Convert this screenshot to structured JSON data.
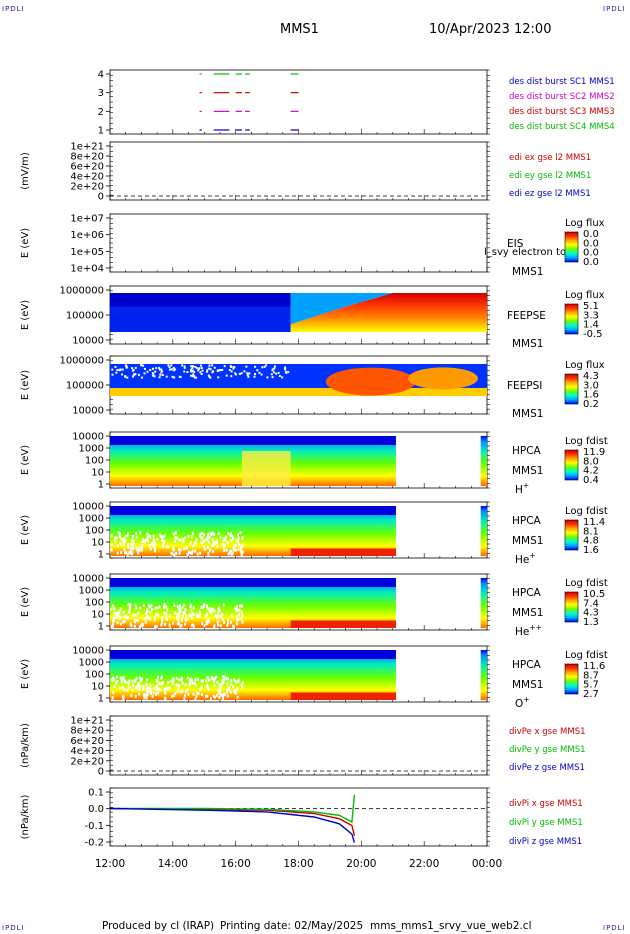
{
  "header": {
    "corner_label": "IPDLI",
    "spacecraft": "MMS1",
    "datetime": "10/Apr/2023 12:00"
  },
  "footer": {
    "produced_by": "Produced by cl (IRAP)",
    "printing_date": "Printing date: 02/May/2025",
    "script_name": "mms_mms1_srvy_vue_web2.cl"
  },
  "colors": {
    "mms1": "#0000cc",
    "mms2": "#cc00cc",
    "mms3": "#cc0000",
    "mms4": "#00bb00",
    "x_comp": "#cc0000",
    "y_comp": "#00bb00",
    "z_comp": "#0000cc",
    "colorbar": [
      "#0000ff",
      "#00aaff",
      "#00ffcc",
      "#66ff00",
      "#ffff00",
      "#ffaa00",
      "#ff3300",
      "#cc0000"
    ]
  },
  "chart_data": {
    "type": "multi-panel time series",
    "x_ticks": [
      "12:00",
      "14:00",
      "16:00",
      "18:00",
      "20:00",
      "22:00",
      "00:00"
    ],
    "x_range_hours": [
      12,
      24
    ],
    "panels": [
      {
        "id": "burst",
        "type": "timeline",
        "ylabel": "",
        "yticks": [
          "4",
          "3",
          "2",
          "1"
        ],
        "legend": [
          {
            "text": "des dist burst SC1 MMS1",
            "color": "#0000cc"
          },
          {
            "text": "des dist burst SC2 MMS2",
            "color": "#cc00cc"
          },
          {
            "text": "des dist burst SC3 MMS3",
            "color": "#cc0000"
          },
          {
            "text": "des dist burst SC4 MMS4",
            "color": "#00bb00"
          }
        ],
        "intervals_hours": [
          [
            14.85,
            14.92
          ],
          [
            15.3,
            15.8
          ],
          [
            16.0,
            16.2
          ],
          [
            16.3,
            16.45
          ],
          [
            17.75,
            18.0
          ]
        ]
      },
      {
        "id": "efield",
        "type": "line",
        "ylabel": "(mV/m)",
        "yticks": [
          "1e+21",
          "8e+20",
          "6e+20",
          "4e+20",
          "2e+20",
          "0"
        ],
        "legend": [
          {
            "text": "edi ex gse l2 MMS1",
            "color": "#cc0000"
          },
          {
            "text": "edi ey gse l2 MMS1",
            "color": "#00bb00"
          },
          {
            "text": "edi ez gse l2 MMS1",
            "color": "#0000cc"
          }
        ]
      },
      {
        "id": "eis",
        "type": "spectrogram",
        "ylabel": "E (eV)",
        "yticks": [
          "1e+07",
          "1e+06",
          "1e+05",
          "1e+04"
        ],
        "labels": [
          "EIS",
          "MMS1"
        ],
        "overlay_text": "l_svy electron to",
        "colorbar_title": "Log flux",
        "colorbar_ticks": [
          "0.0",
          "0.0",
          "0.0",
          "0.0"
        ]
      },
      {
        "id": "feepse",
        "type": "spectrogram",
        "ylabel": "E (eV)",
        "yticks": [
          "1000000",
          "100000",
          "10000"
        ],
        "labels": [
          "FEEPSE",
          "MMS1"
        ],
        "colorbar_title": "Log flux",
        "colorbar_ticks": [
          "5.1",
          "3.3",
          "1.4",
          "-0.5"
        ]
      },
      {
        "id": "feepsi",
        "type": "spectrogram",
        "ylabel": "E (eV)",
        "yticks": [
          "1000000",
          "100000",
          "10000"
        ],
        "labels": [
          "FEEPSI",
          "MMS1"
        ],
        "colorbar_title": "Log flux",
        "colorbar_ticks": [
          "4.3",
          "3.0",
          "1.6",
          "0.2"
        ]
      },
      {
        "id": "hpca_h",
        "type": "spectrogram",
        "ylabel": "E (eV)",
        "yticks": [
          "10000",
          "1000",
          "100",
          "10",
          "1"
        ],
        "labels": [
          "HPCA",
          "MMS1"
        ],
        "species": "H",
        "charge": "+",
        "colorbar_title": "Log fdist",
        "colorbar_ticks": [
          "11.9",
          "8.0",
          "4.2",
          "0.4"
        ]
      },
      {
        "id": "hpca_he",
        "type": "spectrogram",
        "ylabel": "E (eV)",
        "yticks": [
          "10000",
          "1000",
          "100",
          "10",
          "1"
        ],
        "labels": [
          "HPCA",
          "MMS1"
        ],
        "species": "He",
        "charge": "+",
        "colorbar_title": "Log fdist",
        "colorbar_ticks": [
          "11.4",
          "8.1",
          "4.8",
          "1.6"
        ]
      },
      {
        "id": "hpca_hepp",
        "type": "spectrogram",
        "ylabel": "E (eV)",
        "yticks": [
          "10000",
          "1000",
          "100",
          "10",
          "1"
        ],
        "labels": [
          "HPCA",
          "MMS1"
        ],
        "species": "He",
        "charge": "++",
        "colorbar_title": "Log fdist",
        "colorbar_ticks": [
          "10.5",
          "7.4",
          "4.3",
          "1.3"
        ]
      },
      {
        "id": "hpca_o",
        "type": "spectrogram",
        "ylabel": "E (eV)",
        "yticks": [
          "10000",
          "1000",
          "100",
          "10",
          "1"
        ],
        "labels": [
          "HPCA",
          "MMS1"
        ],
        "species": "O",
        "charge": "+",
        "colorbar_title": "Log fdist",
        "colorbar_ticks": [
          "11.6",
          "8.7",
          "5.7",
          "2.7"
        ]
      },
      {
        "id": "divpe",
        "type": "line",
        "ylabel": "(nPa/km)",
        "yticks": [
          "1e+21",
          "8e+20",
          "6e+20",
          "4e+20",
          "2e+20",
          "0"
        ],
        "legend": [
          {
            "text": "divPe x gse MMS1",
            "color": "#cc0000"
          },
          {
            "text": "divPe y gse MMS1",
            "color": "#00bb00"
          },
          {
            "text": "divPe z gse MMS1",
            "color": "#0000cc"
          }
        ]
      },
      {
        "id": "divpi",
        "type": "line",
        "ylabel": "(nPa/km)",
        "yticks": [
          "0.1",
          "0.0",
          "-0.1",
          "-0.2"
        ],
        "ylim": [
          -0.22,
          0.12
        ],
        "legend": [
          {
            "text": "divPi x gse MMS1",
            "color": "#cc0000"
          },
          {
            "text": "divPi y gse MMS1",
            "color": "#00bb00"
          },
          {
            "text": "divPi z gse MMS1",
            "color": "#0000cc"
          }
        ],
        "series": [
          {
            "name": "divPi x gse MMS1",
            "x_hours": [
              12.0,
              15.0,
              17.0,
              18.5,
              19.3,
              19.7,
              19.78
            ],
            "values": [
              0.0,
              -0.005,
              -0.01,
              -0.03,
              -0.06,
              -0.1,
              -0.16
            ]
          },
          {
            "name": "divPi y gse MMS1",
            "x_hours": [
              12.0,
              15.0,
              17.0,
              18.5,
              19.3,
              19.7,
              19.78
            ],
            "values": [
              0.0,
              0.0,
              -0.005,
              -0.02,
              -0.04,
              -0.08,
              0.08
            ]
          },
          {
            "name": "divPi z gse MMS1",
            "x_hours": [
              12.0,
              15.0,
              17.0,
              18.5,
              19.3,
              19.7,
              19.78
            ],
            "values": [
              0.0,
              -0.01,
              -0.02,
              -0.05,
              -0.09,
              -0.15,
              -0.2
            ]
          }
        ]
      }
    ]
  }
}
